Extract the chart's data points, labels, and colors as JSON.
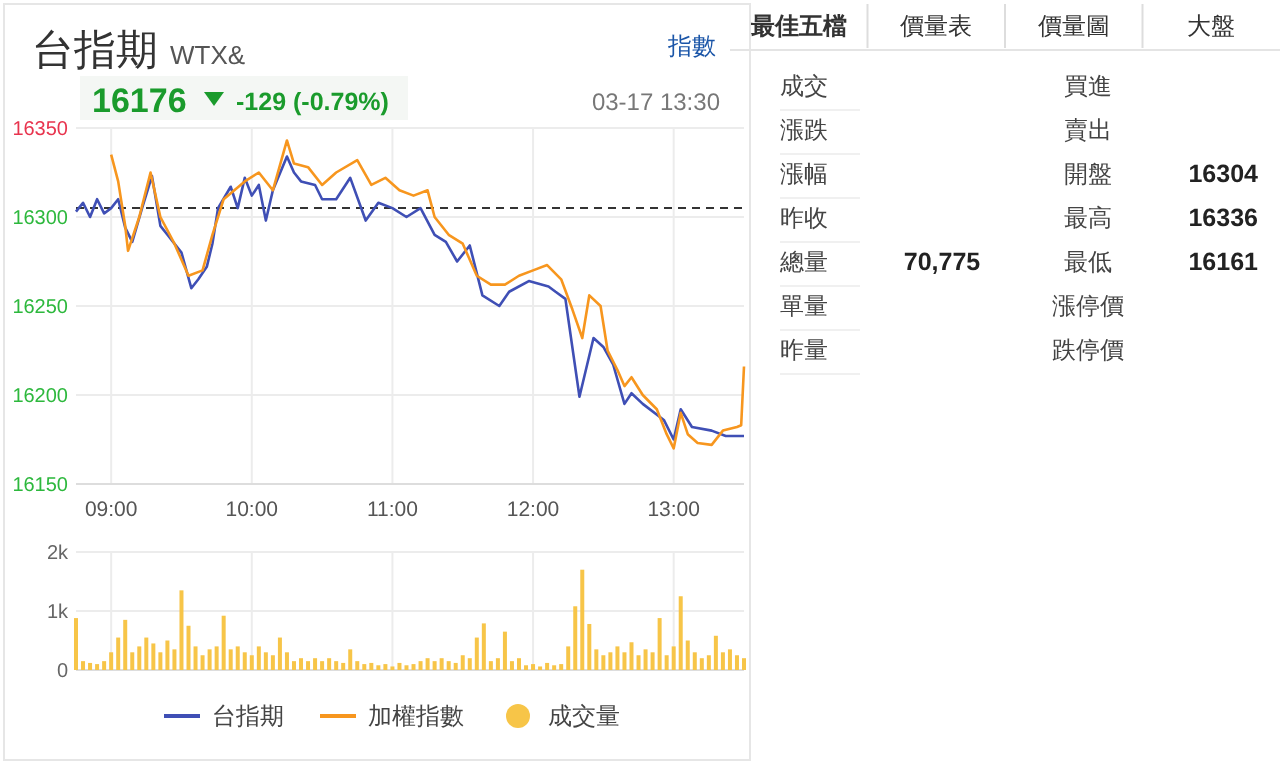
{
  "chart_data": [
    {
      "type": "line",
      "title": "台指期",
      "subtitle": "WTX&",
      "annotations": [
        "16176",
        "-129 (-0.79%)",
        "03-17 13:30",
        "指數"
      ],
      "xlim": [
        8.75,
        13.5
      ],
      "xticks": [
        {
          "value": 9,
          "label": "09:00"
        },
        {
          "value": 10,
          "label": "10:00"
        },
        {
          "value": 11,
          "label": "11:00"
        },
        {
          "value": 12,
          "label": "12:00"
        },
        {
          "value": 13,
          "label": "13:00"
        }
      ],
      "ylim": [
        16150,
        16350
      ],
      "yticks": [
        16150,
        16200,
        16250,
        16300,
        16350
      ],
      "grid": true,
      "legend": "bottom",
      "ref_lines": [
        {
          "axis": "y",
          "value": 16305,
          "color": "#333333",
          "line_style": "dashed"
        }
      ],
      "series": [
        {
          "name": "台指期",
          "color": "#3f4fb5",
          "x": [
            8.75,
            8.8,
            8.85,
            8.9,
            8.95,
            9.0,
            9.05,
            9.1,
            9.15,
            9.22,
            9.29,
            9.35,
            9.4,
            9.5,
            9.57,
            9.62,
            9.68,
            9.72,
            9.76,
            9.85,
            9.9,
            9.95,
            10.0,
            10.05,
            10.1,
            10.15,
            10.25,
            10.3,
            10.35,
            10.45,
            10.5,
            10.6,
            10.7,
            10.81,
            10.9,
            11.0,
            11.1,
            11.2,
            11.3,
            11.38,
            11.46,
            11.55,
            11.64,
            11.76,
            11.83,
            11.97,
            12.11,
            12.16,
            12.23,
            12.33,
            12.43,
            12.5,
            12.57,
            12.65,
            12.7,
            12.78,
            12.93,
            13.0,
            13.05,
            13.13,
            13.27,
            13.37,
            13.5
          ],
          "values": [
            16303,
            16308,
            16300,
            16310,
            16302,
            16305,
            16310,
            16294,
            16286,
            16305,
            16323,
            16295,
            16290,
            16280,
            16260,
            16265,
            16272,
            16285,
            16305,
            16317,
            16305,
            16322,
            16312,
            16318,
            16298,
            16315,
            16334,
            16325,
            16320,
            16318,
            16310,
            16310,
            16322,
            16298,
            16308,
            16305,
            16300,
            16305,
            16290,
            16286,
            16275,
            16284,
            16256,
            16250,
            16258,
            16264,
            16261,
            16258,
            16254,
            16199,
            16232,
            16227,
            16217,
            16195,
            16201,
            16195,
            16186,
            16175,
            16192,
            16182,
            16180,
            16177,
            16177
          ]
        },
        {
          "name": "加權指數",
          "color": "#f7961e",
          "x": [
            9.0,
            9.05,
            9.1,
            9.12,
            9.2,
            9.28,
            9.35,
            9.45,
            9.55,
            9.65,
            9.72,
            9.8,
            9.95,
            10.05,
            10.15,
            10.25,
            10.3,
            10.4,
            10.5,
            10.6,
            10.75,
            10.85,
            10.95,
            11.05,
            11.15,
            11.25,
            11.3,
            11.4,
            11.5,
            11.6,
            11.7,
            11.8,
            11.9,
            12.0,
            12.1,
            12.2,
            12.28,
            12.35,
            12.4,
            12.48,
            12.53,
            12.6,
            12.65,
            12.7,
            12.78,
            12.88,
            12.95,
            13.0,
            13.05,
            13.1,
            13.17,
            13.27,
            13.35,
            13.45,
            13.48,
            13.5
          ],
          "values": [
            16335,
            16320,
            16295,
            16281,
            16300,
            16325,
            16300,
            16285,
            16267,
            16270,
            16290,
            16310,
            16320,
            16325,
            16315,
            16343,
            16330,
            16328,
            16318,
            16325,
            16332,
            16318,
            16322,
            16315,
            16312,
            16315,
            16300,
            16290,
            16285,
            16267,
            16262,
            16262,
            16267,
            16270,
            16273,
            16265,
            16248,
            16232,
            16256,
            16250,
            16225,
            16214,
            16205,
            16210,
            16200,
            16192,
            16178,
            16170,
            16190,
            16178,
            16173,
            16172,
            16180,
            16182,
            16183,
            16216
          ]
        }
      ]
    },
    {
      "type": "bar",
      "xlim": [
        8.75,
        13.5
      ],
      "xticks": [
        {
          "value": 9,
          "label": null
        },
        {
          "value": 10,
          "label": null
        },
        {
          "value": 11,
          "label": null
        },
        {
          "value": 12,
          "label": null
        },
        {
          "value": 13,
          "label": null
        }
      ],
      "ylim": [
        0,
        2000
      ],
      "yticks": [
        0,
        {
          "value": 1000,
          "label": "1k"
        },
        {
          "value": 2000,
          "label": "2k"
        }
      ],
      "tick_labels": "y",
      "grid": true,
      "legend": "bottom",
      "series": [
        {
          "name": "成交量",
          "color": "#f7c548",
          "x": [
            8.75,
            8.8,
            8.85,
            8.9,
            8.95,
            9.0,
            9.05,
            9.1,
            9.15,
            9.2,
            9.25,
            9.3,
            9.35,
            9.4,
            9.45,
            9.5,
            9.55,
            9.6,
            9.65,
            9.7,
            9.75,
            9.8,
            9.85,
            9.9,
            9.95,
            10.0,
            10.05,
            10.1,
            10.15,
            10.2,
            10.25,
            10.3,
            10.35,
            10.4,
            10.45,
            10.5,
            10.55,
            10.6,
            10.65,
            10.7,
            10.75,
            10.8,
            10.85,
            10.9,
            10.95,
            11.0,
            11.05,
            11.1,
            11.15,
            11.2,
            11.25,
            11.3,
            11.35,
            11.4,
            11.45,
            11.5,
            11.55,
            11.6,
            11.65,
            11.7,
            11.75,
            11.8,
            11.85,
            11.9,
            11.95,
            12.0,
            12.05,
            12.1,
            12.15,
            12.2,
            12.25,
            12.3,
            12.35,
            12.4,
            12.45,
            12.5,
            12.55,
            12.6,
            12.65,
            12.7,
            12.75,
            12.8,
            12.85,
            12.9,
            12.95,
            13.0,
            13.05,
            13.1,
            13.15,
            13.2,
            13.25,
            13.3,
            13.35,
            13.4,
            13.45,
            13.5
          ],
          "values": [
            880,
            150,
            120,
            100,
            150,
            300,
            550,
            850,
            300,
            400,
            550,
            450,
            300,
            500,
            350,
            1350,
            750,
            400,
            250,
            350,
            400,
            920,
            350,
            400,
            300,
            250,
            400,
            300,
            250,
            550,
            300,
            150,
            200,
            150,
            200,
            150,
            200,
            150,
            120,
            350,
            150,
            100,
            120,
            80,
            100,
            60,
            120,
            80,
            100,
            150,
            200,
            150,
            200,
            150,
            120,
            250,
            200,
            550,
            790,
            150,
            200,
            650,
            150,
            200,
            80,
            100,
            60,
            120,
            80,
            100,
            400,
            1080,
            1700,
            780,
            350,
            250,
            300,
            400,
            300,
            470,
            250,
            350,
            300,
            880,
            250,
            400,
            1250,
            500,
            300,
            200,
            250,
            580,
            300,
            350,
            250,
            200
          ]
        }
      ]
    },
    {
      "type": "other",
      "annotations": [
        "最佳五檔",
        "價量表",
        "價量圖",
        "大盤"
      ],
      "categories": [
        "成交",
        "漲跌",
        "漲幅",
        "昨收",
        "總量",
        "單量",
        "昨量",
        "買進",
        "賣出",
        "開盤",
        "最高",
        "最低",
        "漲停價",
        "跌停價"
      ],
      "value_labels": [
        null,
        null,
        null,
        null,
        "70,775",
        null,
        null,
        null,
        null,
        "16304",
        "16336",
        "16161",
        null,
        null
      ]
    }
  ]
}
